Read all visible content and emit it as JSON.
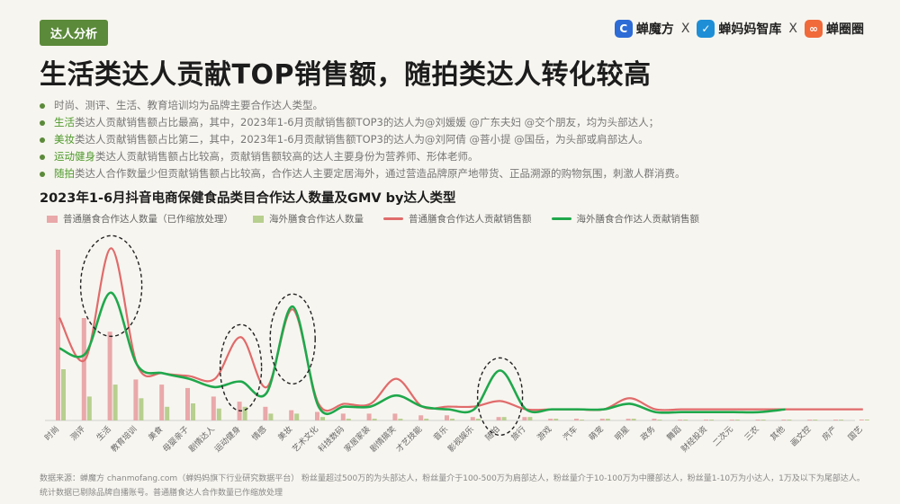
{
  "tag": "达人分析",
  "brands": {
    "b1": "蝉魔方",
    "b2": "蝉妈妈智库",
    "b3": "蝉圈圈",
    "x": "X"
  },
  "title": "生活类达人贡献TOP销售额，随拍类达人转化较高",
  "bullets": [
    {
      "hl": "",
      "text": "时尚、测评、生活、教育培训均为品牌主要合作达人类型。"
    },
    {
      "hl": "生活",
      "text": "类达人贡献销售额占比最高，其中，2023年1-6月贡献销售额TOP3的达人为@刘媛媛 @广东夫妇 @交个朋友，均为头部达人；"
    },
    {
      "hl": "美妆",
      "text": "类达人贡献销售额占比第二，其中，2023年1-6月贡献销售额TOP3的达人为@刘阿倩 @菩小提 @国岳，为头部或肩部达人。"
    },
    {
      "hl": "运动健身",
      "text": "类达人贡献销售额占比较高，贡献销售额较高的达人主要身份为营养师、形体老师。"
    },
    {
      "hl": "随拍",
      "text": "类达人合作数量少但贡献销售额占比较高，合作达人主要定居海外，通过营造品牌原产地带货、正品溯源的购物氛围，刺激人群消费。"
    }
  ],
  "chart_data": {
    "type": "bar",
    "title": "2023年1-6月抖音电商保健食品类目合作达人数量及GMV by达人类型",
    "categories": [
      "时尚",
      "测评",
      "生活",
      "教育培训",
      "美食",
      "母婴亲子",
      "剧情达人",
      "运动健身",
      "情感",
      "美妆",
      "艺术文化",
      "科技数码",
      "家居家装",
      "剧情搞笑",
      "才艺技能",
      "音乐",
      "影视娱乐",
      "随拍",
      "旅行",
      "游戏",
      "汽车",
      "萌宠",
      "明星",
      "政务",
      "舞蹈",
      "财经投资",
      "二次元",
      "三农",
      "其他",
      "画文控",
      "房产",
      "国艺"
    ],
    "series": [
      {
        "name": "普通膳食合作达人数量（已作缩放处理）",
        "kind": "bar",
        "color": "#e9a8aa",
        "values": [
          100,
          60,
          52,
          24,
          21,
          19,
          14,
          11,
          8,
          6,
          5,
          4,
          4,
          4,
          3,
          3,
          2,
          2,
          2,
          1,
          1,
          1,
          1,
          1,
          0.5,
          0.5,
          0.5,
          0.5,
          0.5,
          0.5,
          0.5,
          0.5
        ]
      },
      {
        "name": "海外膳食合作达人数量",
        "kind": "bar",
        "color": "#b7cf8f",
        "values": [
          30,
          14,
          21,
          13,
          8,
          10,
          7,
          8,
          4,
          4,
          2,
          1,
          1,
          1,
          1,
          1,
          1,
          2,
          2,
          1,
          0.5,
          1,
          1,
          0.5,
          0.5,
          0.5,
          0.5,
          0.5,
          0.5,
          0.5,
          0.5,
          0.5
        ]
      },
      {
        "name": "普通膳食合作达人贡献销售额",
        "kind": "line",
        "color": "#e06b6b",
        "values": [
          37,
          22,
          62,
          20,
          17,
          16,
          15,
          30,
          12,
          40,
          6,
          6,
          6,
          15,
          5,
          5,
          5,
          7,
          4,
          4,
          4,
          4,
          8,
          4,
          4,
          4,
          4,
          4,
          4,
          4,
          4,
          4
        ]
      },
      {
        "name": "海外膳食合作达人贡献销售额",
        "kind": "line",
        "color": "#1fa84c",
        "values": [
          26,
          24,
          46,
          20,
          17,
          15,
          12,
          14,
          10,
          41,
          5,
          5,
          5,
          9,
          5,
          4,
          4,
          18,
          4,
          4,
          4,
          4,
          6,
          3,
          3,
          3,
          3,
          3,
          4,
          null,
          null,
          null
        ]
      }
    ],
    "legend_position": "top",
    "grid": false,
    "annotations": "dashed ellipses highlight 生活, 运动健身, 美妆, 随拍"
  },
  "footer": {
    "line1": "数据来源：蝉魔方 chanmofang.com（蝉妈妈旗下行业研究数据平台） 粉丝量超过500万的为头部达人，粉丝量介于100-500万为肩部达人，粉丝量介于10-100万为中腰部达人，粉丝量1-10万为小达人，1万及以下为尾部达人。",
    "line2": "统计数据已剔除品牌自播账号。普通膳食达人合作数量已作缩放处理"
  }
}
